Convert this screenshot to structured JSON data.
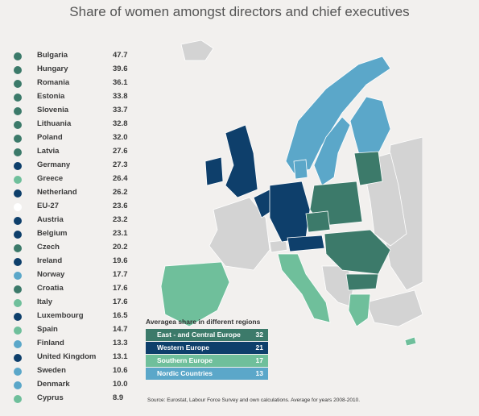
{
  "title": "Share of women amongst directors and chief executives",
  "colors": {
    "east_central": "#3c7a6a",
    "western": "#0e3f6b",
    "southern": "#6fbf9b",
    "nordic": "#5ba7c9",
    "eu27": "#ffffff",
    "other": "#d3d3d3",
    "background": "#f2f0ee"
  },
  "countries": [
    {
      "name": "Bulgaria",
      "value": "47.7",
      "region": "east_central"
    },
    {
      "name": "Hungary",
      "value": "39.6",
      "region": "east_central"
    },
    {
      "name": "Romania",
      "value": "36.1",
      "region": "east_central"
    },
    {
      "name": "Estonia",
      "value": "33.8",
      "region": "east_central"
    },
    {
      "name": "Slovenia",
      "value": "33.7",
      "region": "east_central"
    },
    {
      "name": "Lithuania",
      "value": "32.8",
      "region": "east_central"
    },
    {
      "name": "Poland",
      "value": "32.0",
      "region": "east_central"
    },
    {
      "name": "Latvia",
      "value": "27.6",
      "region": "east_central"
    },
    {
      "name": "Germany",
      "value": "27.3",
      "region": "western"
    },
    {
      "name": "Greece",
      "value": "26.4",
      "region": "southern"
    },
    {
      "name": "Netherland",
      "value": "26.2",
      "region": "western"
    },
    {
      "name": "EU-27",
      "value": "23.6",
      "region": "eu27"
    },
    {
      "name": "Austria",
      "value": "23.2",
      "region": "western"
    },
    {
      "name": "Belgium",
      "value": "23.1",
      "region": "western"
    },
    {
      "name": "Czech",
      "value": "20.2",
      "region": "east_central"
    },
    {
      "name": "Ireland",
      "value": "19.6",
      "region": "western"
    },
    {
      "name": "Norway",
      "value": "17.7",
      "region": "nordic"
    },
    {
      "name": "Croatia",
      "value": "17.6",
      "region": "east_central"
    },
    {
      "name": "Italy",
      "value": "17.6",
      "region": "southern"
    },
    {
      "name": "Luxembourg",
      "value": "16.5",
      "region": "western"
    },
    {
      "name": "Spain",
      "value": "14.7",
      "region": "southern"
    },
    {
      "name": "Finland",
      "value": "13.3",
      "region": "nordic"
    },
    {
      "name": "United Kingdom",
      "value": "13.1",
      "region": "western"
    },
    {
      "name": "Sweden",
      "value": "10.6",
      "region": "nordic"
    },
    {
      "name": "Denmark",
      "value": "10.0",
      "region": "nordic"
    },
    {
      "name": "Cyprus",
      "value": "8.9",
      "region": "southern"
    }
  ],
  "legend": {
    "title": "Averagea share in different regions",
    "items": [
      {
        "name": "East - and Central Europe",
        "value": "32",
        "region": "east_central"
      },
      {
        "name": "Western Europe",
        "value": "21",
        "region": "western"
      },
      {
        "name": "Southern Europe",
        "value": "17",
        "region": "southern"
      },
      {
        "name": "Nordic Countries",
        "value": "13",
        "region": "nordic"
      }
    ]
  },
  "source": "Source: Eurostat, Labour Force Survey and own calculations. Average for years 2008-2010."
}
